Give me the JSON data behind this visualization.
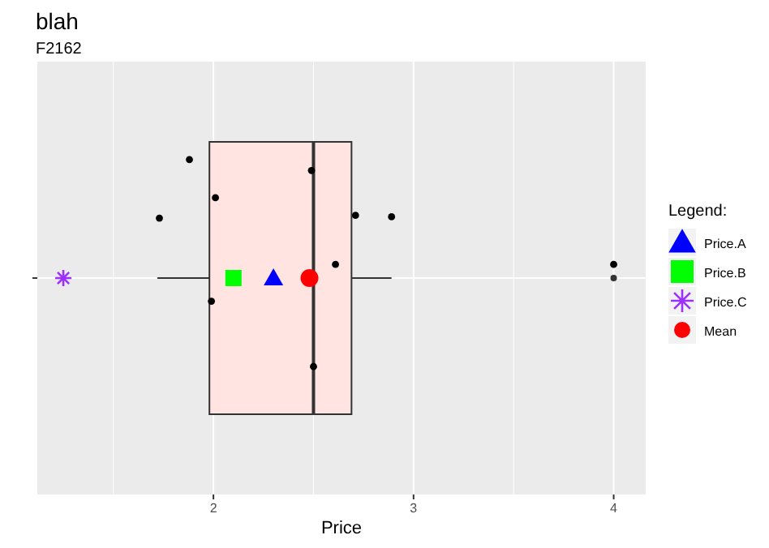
{
  "chart_data": {
    "type": "box",
    "orientation": "horizontal",
    "title": "blah",
    "subtitle": "F2162",
    "xlabel": "Price",
    "legend_title": "Legend:",
    "legend": "right",
    "grid": true,
    "categories": [
      null
    ],
    "xlim": [
      1.12,
      4.16
    ],
    "xticks": [
      2,
      3,
      4
    ],
    "series": [
      {
        "color": "#ffe4e1",
        "boxes": [
          {
            "low": 1.72,
            "q1": 1.98,
            "median": 2.5,
            "q3": 2.69,
            "high": 2.89,
            "outliers": [
              4.0
            ]
          }
        ]
      },
      {
        "type": "scatter",
        "color": "#000000",
        "marker": "circle",
        "x": [
          null,
          null,
          null,
          null,
          null,
          null,
          null,
          null,
          null,
          null
        ],
        "values": [
          1.88,
          2.01,
          1.73,
          2.49,
          2.71,
          2.89,
          2.61,
          1.99,
          2.5,
          4.0
        ]
      },
      {
        "type": "scatter",
        "name": "Price.A",
        "color": "#0000ff",
        "marker": "triangle",
        "values": [
          2.3
        ]
      },
      {
        "type": "scatter",
        "name": "Price.B",
        "color": "#00ff00",
        "marker": "square",
        "values": [
          2.1
        ]
      },
      {
        "type": "scatter",
        "name": "Price.C",
        "color": "#9b30ff",
        "marker": "cross",
        "values": [
          1.25
        ]
      },
      {
        "type": "scatter",
        "name": "Mean",
        "color": "#ff0000",
        "marker": "circle",
        "values": [
          2.48
        ]
      }
    ]
  }
}
